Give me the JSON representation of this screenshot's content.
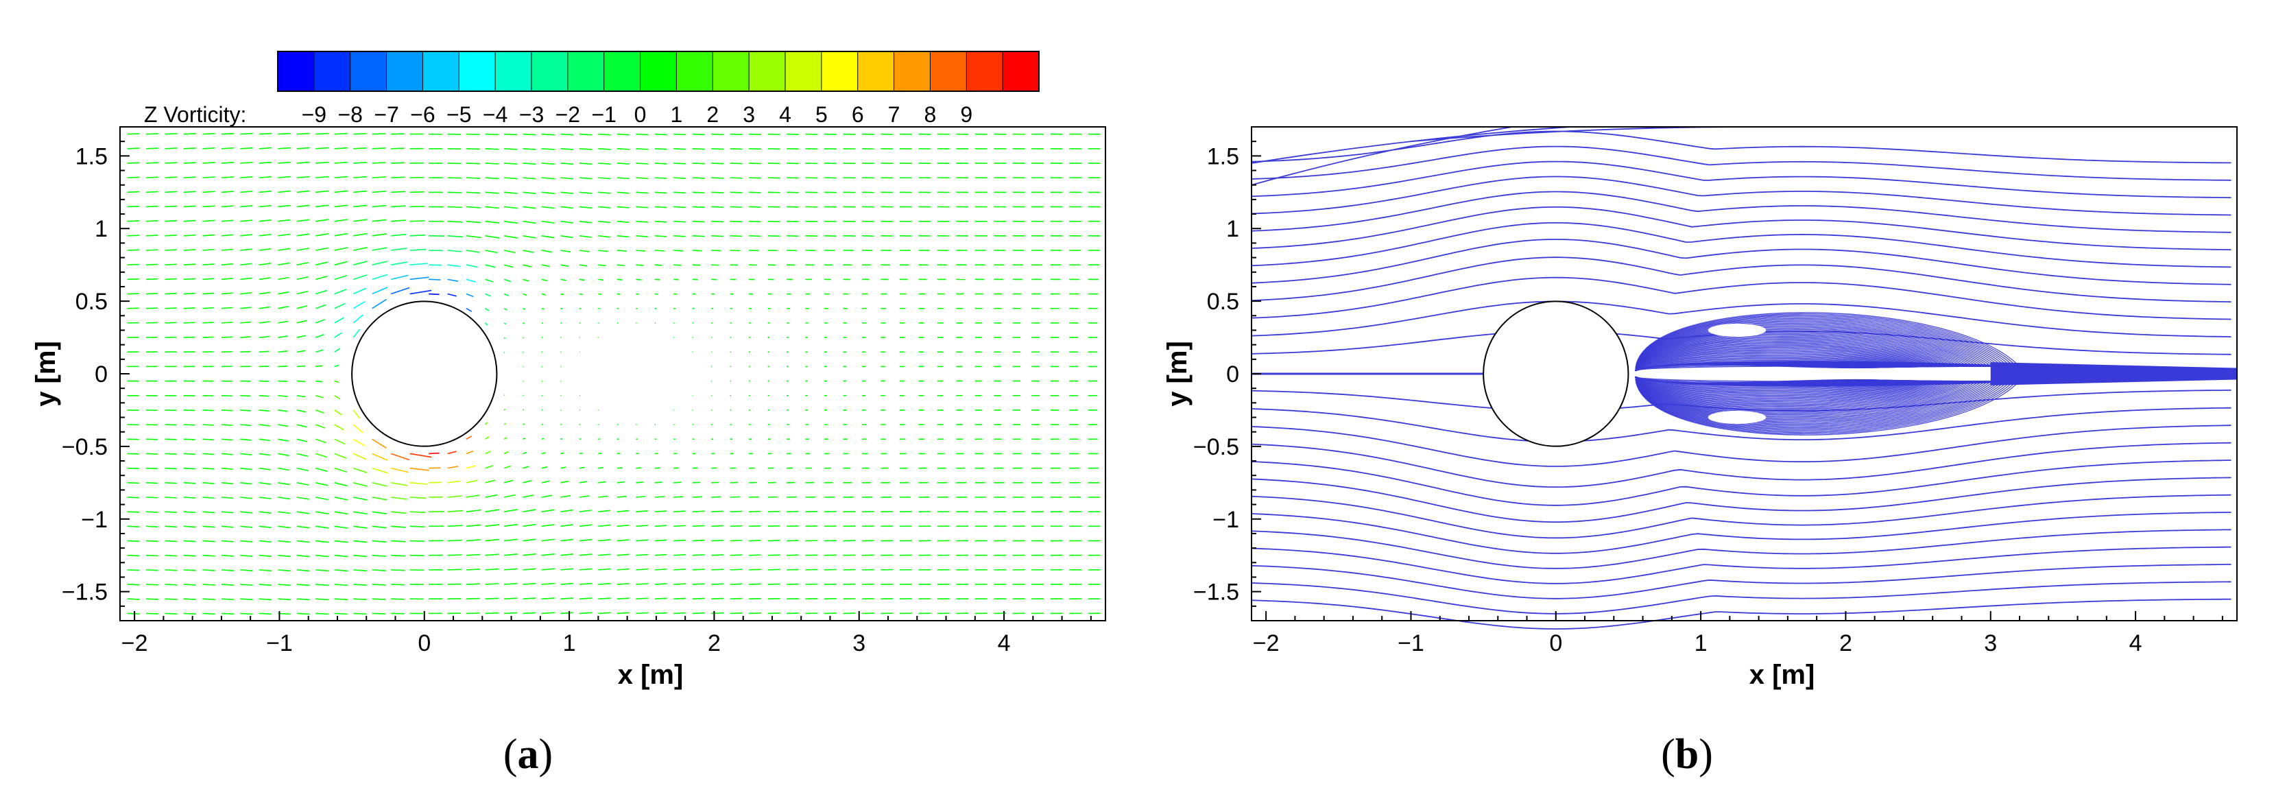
{
  "chart_data": [
    {
      "panel_label": "a",
      "type": "vector-field",
      "field": "velocity vectors colored by Z vorticity (flow past a circular cylinder)",
      "xlabel": "x [m]",
      "ylabel": "y [m]",
      "xlim": [
        -2.1,
        4.7
      ],
      "ylim": [
        -1.7,
        1.7
      ],
      "xticks": [
        -2,
        -1,
        0,
        1,
        2,
        3,
        4
      ],
      "yticks": [
        -1.5,
        -1,
        -0.5,
        0,
        0.5,
        1,
        1.5
      ],
      "xtick_labels": [
        "−2",
        "−1",
        "0",
        "1",
        "2",
        "3",
        "4"
      ],
      "ytick_labels": [
        "−1.5",
        "−1",
        "−0.5",
        "0",
        "0.5",
        "1",
        "1.5"
      ],
      "cylinder": {
        "center": [
          0,
          0
        ],
        "radius": 0.5
      },
      "colorbar": {
        "label": "Z Vorticity:",
        "levels": [
          -9,
          -8,
          -7,
          -6,
          -5,
          -4,
          -3,
          -2,
          -1,
          0,
          1,
          2,
          3,
          4,
          5,
          6,
          7,
          8,
          9
        ],
        "level_labels": [
          "−9",
          "−8",
          "−7",
          "−6",
          "−5",
          "−4",
          "−3",
          "−2",
          "−1",
          "0",
          "1",
          "2",
          "3",
          "4",
          "5",
          "6",
          "7",
          "8",
          "9"
        ],
        "colors": [
          "#0000ff",
          "#0030ff",
          "#0066ff",
          "#0099ff",
          "#00ccff",
          "#00ffff",
          "#00ffcc",
          "#00ff99",
          "#00ff66",
          "#00ff33",
          "#00ff00",
          "#33ff00",
          "#66ff00",
          "#99ff00",
          "#ccff00",
          "#ffff00",
          "#ffcc00",
          "#ff9900",
          "#ff6600",
          "#ff3300",
          "#ff0000"
        ]
      },
      "grid": false
    },
    {
      "panel_label": "b",
      "type": "streamlines",
      "field": "streamlines around a circular cylinder with recirculating wake",
      "xlabel": "x [m]",
      "ylabel": "y [m]",
      "xlim": [
        -2.1,
        4.7
      ],
      "ylim": [
        -1.7,
        1.7
      ],
      "xticks": [
        -2,
        -1,
        0,
        1,
        2,
        3,
        4
      ],
      "yticks": [
        -1.5,
        -1,
        -0.5,
        0,
        0.5,
        1,
        1.5
      ],
      "xtick_labels": [
        "−2",
        "−1",
        "0",
        "1",
        "2",
        "3",
        "4"
      ],
      "ytick_labels": [
        "−1.5",
        "−1",
        "−0.5",
        "0",
        "0.5",
        "1",
        "1.5"
      ],
      "cylinder": {
        "center": [
          0,
          0
        ],
        "radius": 0.5
      },
      "wake": {
        "x_start": 0.5,
        "x_end": 3.2,
        "half_height": 0.55,
        "vortex_centers": [
          [
            1.25,
            0.3
          ],
          [
            1.25,
            -0.3
          ]
        ]
      },
      "line_color": "#3a3ad8",
      "grid": false
    }
  ]
}
